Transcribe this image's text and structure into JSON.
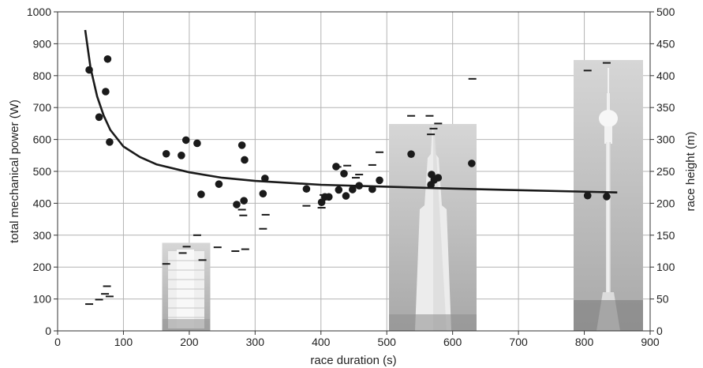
{
  "chart_data": {
    "type": "scatter",
    "xlabel": "race duration (s)",
    "ylabel": "total mechanical power (W)",
    "y2label": "race height (m)",
    "xlim": [
      0,
      900
    ],
    "ylim": [
      0,
      1000
    ],
    "y2lim": [
      0,
      500
    ],
    "xticks": [
      0,
      100,
      200,
      300,
      400,
      500,
      600,
      700,
      800,
      900
    ],
    "yticks": [
      0,
      100,
      200,
      300,
      400,
      500,
      600,
      700,
      800,
      900,
      1000
    ],
    "y2ticks": [
      0,
      50,
      100,
      150,
      200,
      250,
      300,
      350,
      400,
      450,
      500
    ],
    "grid": true,
    "colors": {
      "marks": "#1a1a1a",
      "grid": "#b4b4b4",
      "axes": "#333333",
      "building_bg": "#c8c8c8"
    },
    "power_points": [
      [
        48,
        818
      ],
      [
        63,
        670
      ],
      [
        73,
        750
      ],
      [
        76,
        852
      ],
      [
        79,
        592
      ],
      [
        165,
        555
      ],
      [
        188,
        550
      ],
      [
        195,
        598
      ],
      [
        212,
        588
      ],
      [
        218,
        428
      ],
      [
        245,
        460
      ],
      [
        272,
        396
      ],
      [
        280,
        582
      ],
      [
        283,
        408
      ],
      [
        284,
        536
      ],
      [
        312,
        430
      ],
      [
        315,
        478
      ],
      [
        378,
        445
      ],
      [
        401,
        403
      ],
      [
        406,
        420
      ],
      [
        412,
        420
      ],
      [
        423,
        515
      ],
      [
        427,
        442
      ],
      [
        435,
        493
      ],
      [
        438,
        423
      ],
      [
        448,
        443
      ],
      [
        458,
        455
      ],
      [
        478,
        444
      ],
      [
        489,
        472
      ],
      [
        537,
        554
      ],
      [
        567,
        458
      ],
      [
        568,
        490
      ],
      [
        572,
        473
      ],
      [
        578,
        480
      ],
      [
        629,
        525
      ],
      [
        805,
        424
      ],
      [
        834,
        421
      ]
    ],
    "height_points": [
      [
        48,
        42
      ],
      [
        63,
        49
      ],
      [
        72,
        58
      ],
      [
        75,
        70
      ],
      [
        79,
        54
      ],
      [
        165,
        105
      ],
      [
        190,
        122
      ],
      [
        196,
        132
      ],
      [
        212,
        150
      ],
      [
        220,
        111
      ],
      [
        243,
        131
      ],
      [
        270,
        125
      ],
      [
        280,
        190
      ],
      [
        282,
        181
      ],
      [
        285,
        128
      ],
      [
        312,
        160
      ],
      [
        316,
        182
      ],
      [
        378,
        196
      ],
      [
        401,
        193
      ],
      [
        404,
        213
      ],
      [
        425,
        257
      ],
      [
        440,
        259
      ],
      [
        450,
        226
      ],
      [
        453,
        240
      ],
      [
        458,
        245
      ],
      [
        478,
        260
      ],
      [
        489,
        280
      ],
      [
        537,
        337
      ],
      [
        565,
        337
      ],
      [
        567,
        308
      ],
      [
        571,
        317
      ],
      [
        578,
        325
      ],
      [
        630,
        395
      ],
      [
        805,
        408
      ],
      [
        834,
        420
      ]
    ],
    "fit_curve": [
      [
        42,
        943
      ],
      [
        50,
        825
      ],
      [
        60,
        735
      ],
      [
        70,
        675
      ],
      [
        80,
        630
      ],
      [
        100,
        578
      ],
      [
        125,
        545
      ],
      [
        150,
        522
      ],
      [
        200,
        497
      ],
      [
        250,
        480
      ],
      [
        300,
        470
      ],
      [
        400,
        458
      ],
      [
        500,
        452
      ],
      [
        600,
        446
      ],
      [
        700,
        441
      ],
      [
        850,
        434
      ]
    ],
    "buildings": [
      {
        "x": [
          162,
          228
        ],
        "height": 140
      },
      {
        "x": [
          500,
          632
        ],
        "height": 323
      },
      {
        "x": [
          783,
          849
        ],
        "height": 424
      }
    ]
  }
}
